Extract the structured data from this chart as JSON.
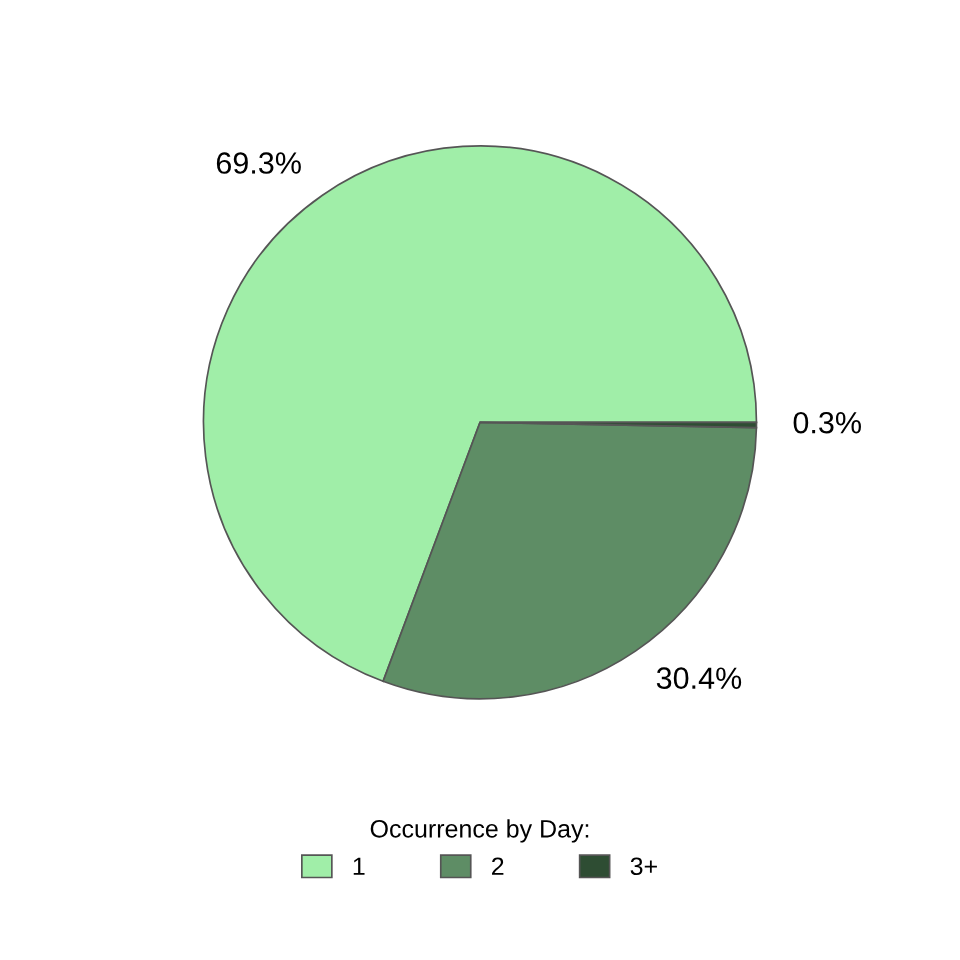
{
  "chart_data": {
    "type": "pie",
    "categories": [
      "1",
      "2",
      "3+"
    ],
    "values": [
      69.3,
      30.4,
      0.3
    ],
    "colors": [
      "#a0eea8",
      "#5e8d65",
      "#2e4d33"
    ],
    "value_labels": [
      "69.3%",
      "30.4%",
      "0.3%"
    ],
    "legend_title": "Occurrence by Day:",
    "legend": "bottom"
  }
}
